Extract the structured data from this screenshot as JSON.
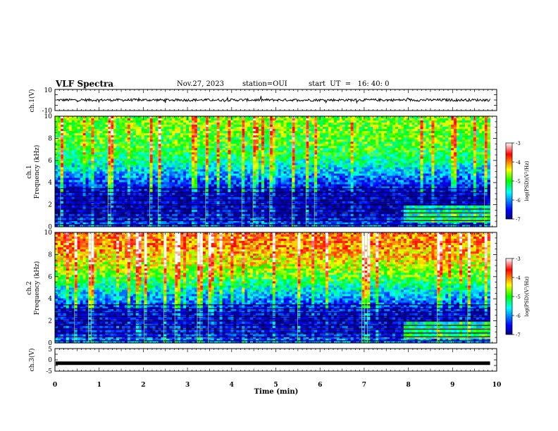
{
  "header": {
    "title": "VLF Spectra",
    "date": "Nov.27, 2023",
    "station": "station=OUI",
    "start": "start  UT  =   16: 40: 0"
  },
  "chart_data": [
    {
      "type": "line",
      "panel": "ch1-waveform",
      "ylabel": "ch.1(V)",
      "ylim": [
        -10,
        10
      ],
      "yticks": [
        "10",
        "-10"
      ],
      "xlim": [
        0,
        10
      ],
      "series": [
        {
          "values_description_omitted": true,
          "level": 0,
          "noise_amplitude": 1.2
        }
      ]
    },
    {
      "type": "heatmap",
      "panel": "ch1-spectrogram",
      "ylabel_top": "ch.1",
      "ylabel": "Frequency (kHz)",
      "ylim": [
        0,
        10
      ],
      "yticks": [
        "0",
        "2",
        "4",
        "6",
        "8",
        "10"
      ],
      "xlim": [
        0,
        9.85
      ],
      "colorbar": {
        "label": "log(PSD)(V²/Hz)",
        "ticks": [
          "-3",
          "-4",
          "-5",
          "-6",
          "-7"
        ],
        "range": [
          -7,
          -3
        ]
      },
      "profile_by_freq_khz": [
        [
          0,
          -6.2
        ],
        [
          1,
          -6.6
        ],
        [
          2,
          -6.8
        ],
        [
          3,
          -6.7
        ],
        [
          4,
          -6.3
        ],
        [
          5,
          -5.8
        ],
        [
          6,
          -5.3
        ],
        [
          7,
          -5.0
        ],
        [
          8,
          -4.9
        ],
        [
          9,
          -4.8
        ],
        [
          10,
          -4.8
        ]
      ]
    },
    {
      "type": "heatmap",
      "panel": "ch2-spectrogram",
      "ylabel_top": "ch.2",
      "ylabel": "Frequency (kHz)",
      "ylim": [
        0,
        10
      ],
      "yticks": [
        "0",
        "2",
        "4",
        "6",
        "8",
        "10"
      ],
      "xlim": [
        0,
        9.85
      ],
      "colorbar": {
        "label": "log(PSD)(V²/Hz)",
        "ticks": [
          "-3",
          "-4",
          "-5",
          "-6",
          "-7"
        ],
        "range": [
          -7,
          -3
        ]
      },
      "profile_by_freq_khz": [
        [
          0,
          -6.0
        ],
        [
          1,
          -6.5
        ],
        [
          2,
          -6.7
        ],
        [
          3,
          -6.5
        ],
        [
          4,
          -6.0
        ],
        [
          5,
          -5.5
        ],
        [
          6,
          -4.9
        ],
        [
          7,
          -4.5
        ],
        [
          8,
          -4.2
        ],
        [
          9,
          -4.0
        ],
        [
          10,
          -3.9
        ]
      ]
    },
    {
      "type": "line",
      "panel": "ch3-waveform",
      "ylabel": "ch.3(V)",
      "ylim": [
        -5,
        5
      ],
      "yticks": [
        "5",
        "0",
        "-5"
      ],
      "xlim": [
        0,
        10
      ],
      "series": [
        {
          "level": -1.5
        }
      ]
    }
  ],
  "xaxis": {
    "label": "Time  (min)",
    "ticks": [
      "0",
      "1",
      "2",
      "3",
      "4",
      "5",
      "6",
      "7",
      "8",
      "9",
      "10"
    ]
  }
}
